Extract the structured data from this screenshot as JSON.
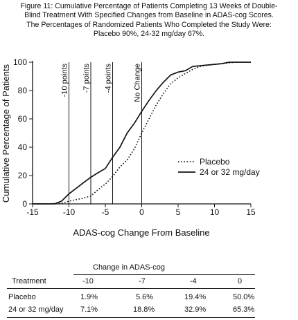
{
  "figure": {
    "title_lines": [
      "Figure 11: Cumulative Percentage of Patients Completing 13 Weeks of Double-",
      "Blind Treatment With Specified Changes from Baseline in ADAS-cog Scores.",
      "The Percentages of Randomized Patients Who Completed the Study Were:",
      "Placebo 90%, 24-32 mg/day 67%."
    ]
  },
  "chart_data": {
    "type": "line",
    "title": "Figure 11: Cumulative Percentage of Patients Completing 13 Weeks of Double-Blind Treatment With Specified Changes from Baseline in ADAS-cog Scores.",
    "xlabel": "ADAS-cog Change From Baseline",
    "ylabel": "Cumulative Percentage of Patients",
    "xlim": [
      -15,
      15
    ],
    "ylim": [
      0,
      100
    ],
    "x_ticks": [
      -15,
      -10,
      -5,
      0,
      5,
      10,
      15
    ],
    "y_ticks": [
      0,
      20,
      40,
      60,
      80,
      100
    ],
    "grid": false,
    "legend_position": "right",
    "reference_lines": [
      {
        "x": -10,
        "label": "-10 points"
      },
      {
        "x": -7,
        "label": "-7 points"
      },
      {
        "x": -4,
        "label": "-4 points"
      },
      {
        "x": 0,
        "label": "No Change"
      }
    ],
    "series": [
      {
        "name": "Placebo",
        "style": "dotted",
        "color": "#111111",
        "points": [
          [
            -15,
            0
          ],
          [
            -13,
            0
          ],
          [
            -11,
            0.5
          ],
          [
            -10,
            1.9
          ],
          [
            -9,
            3
          ],
          [
            -8,
            4
          ],
          [
            -7,
            5.6
          ],
          [
            -6,
            10
          ],
          [
            -5,
            14
          ],
          [
            -4,
            19.4
          ],
          [
            -3,
            26
          ],
          [
            -2,
            31
          ],
          [
            -1,
            39
          ],
          [
            0,
            50
          ],
          [
            1,
            60
          ],
          [
            2,
            70
          ],
          [
            3,
            78
          ],
          [
            4,
            85
          ],
          [
            5,
            89
          ],
          [
            6,
            92
          ],
          [
            7,
            95
          ],
          [
            8,
            97
          ],
          [
            9,
            98
          ],
          [
            10,
            98.5
          ],
          [
            11,
            99
          ],
          [
            12,
            99.5
          ],
          [
            13,
            100
          ],
          [
            15,
            100
          ]
        ]
      },
      {
        "name": "24 or 32 mg/day",
        "style": "solid",
        "color": "#111111",
        "points": [
          [
            -15,
            0
          ],
          [
            -12,
            0
          ],
          [
            -11,
            2
          ],
          [
            -10,
            7.1
          ],
          [
            -9,
            11
          ],
          [
            -8,
            15
          ],
          [
            -7,
            18.8
          ],
          [
            -6,
            22
          ],
          [
            -5,
            25
          ],
          [
            -4,
            32.9
          ],
          [
            -3,
            40
          ],
          [
            -2,
            50
          ],
          [
            -1,
            57
          ],
          [
            0,
            65.3
          ],
          [
            1,
            73
          ],
          [
            2,
            80
          ],
          [
            3,
            86
          ],
          [
            4,
            91
          ],
          [
            5,
            93
          ],
          [
            6,
            94
          ],
          [
            7,
            97
          ],
          [
            8,
            97.5
          ],
          [
            9,
            98
          ],
          [
            10,
            98.5
          ],
          [
            11,
            99
          ],
          [
            12,
            100
          ],
          [
            15,
            100
          ]
        ]
      }
    ]
  },
  "table": {
    "group_header": "Change in ADAS-cog",
    "columns": [
      "Treatment",
      "-10",
      "-7",
      "-4",
      "0"
    ],
    "rows": [
      [
        "Placebo",
        "1.9%",
        "5.6%",
        "19.4%",
        "50.0%"
      ],
      [
        "24 or 32 mg/day",
        "7.1%",
        "18.8%",
        "32.9%",
        "65.3%"
      ]
    ]
  }
}
